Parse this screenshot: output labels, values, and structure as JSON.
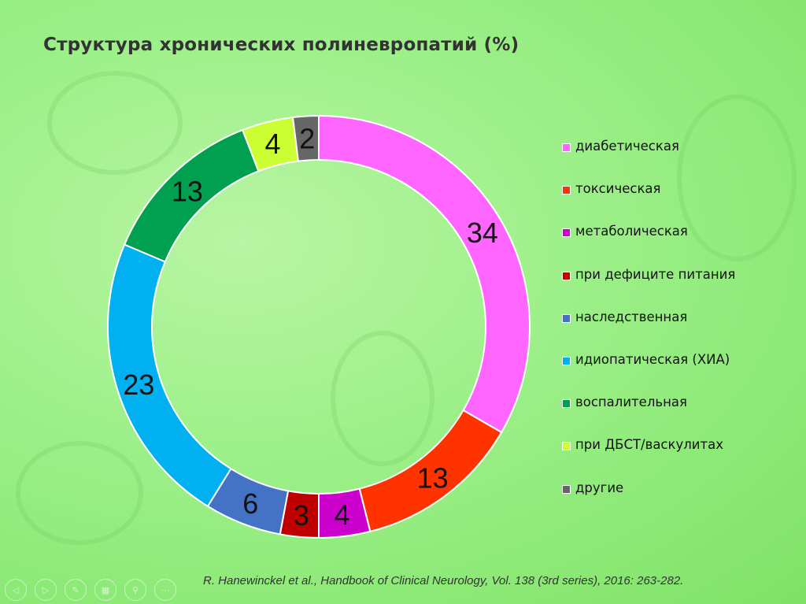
{
  "slide_title": "Структура хронических полиневропатий (%)",
  "citation": "R. Hanewinckel et al., Handbook of Clinical Neurology, Vol. 138 (3rd series), 2016: 263-282.",
  "nav_icons": [
    {
      "name": "prev-icon",
      "glyph": "◁"
    },
    {
      "name": "next-icon",
      "glyph": "▷"
    },
    {
      "name": "pen-icon",
      "glyph": "✎"
    },
    {
      "name": "slides-icon",
      "glyph": "▦"
    },
    {
      "name": "zoom-icon",
      "glyph": "⚲"
    },
    {
      "name": "more-icon",
      "glyph": "⋯"
    }
  ],
  "chart_data": {
    "type": "pie",
    "subtype": "donut",
    "title": "Структура хронических полиневропатий (%)",
    "start": "top",
    "direction": "clockwise",
    "legend_position": "right",
    "categories": [
      "диабетическая",
      "токсическая",
      "метаболическая",
      "при дефиците питания",
      "наследственная",
      "идиопатическая (ХИА)",
      "воспалительная",
      "при ДБСТ/васкулитах",
      "другие"
    ],
    "values": [
      34,
      13,
      4,
      3,
      6,
      23,
      13,
      4,
      2
    ],
    "colors": [
      "#ff66ff",
      "#ff3300",
      "#cc00cc",
      "#c00000",
      "#4472c4",
      "#00b0f0",
      "#00a050",
      "#ccff33",
      "#666666"
    ]
  }
}
